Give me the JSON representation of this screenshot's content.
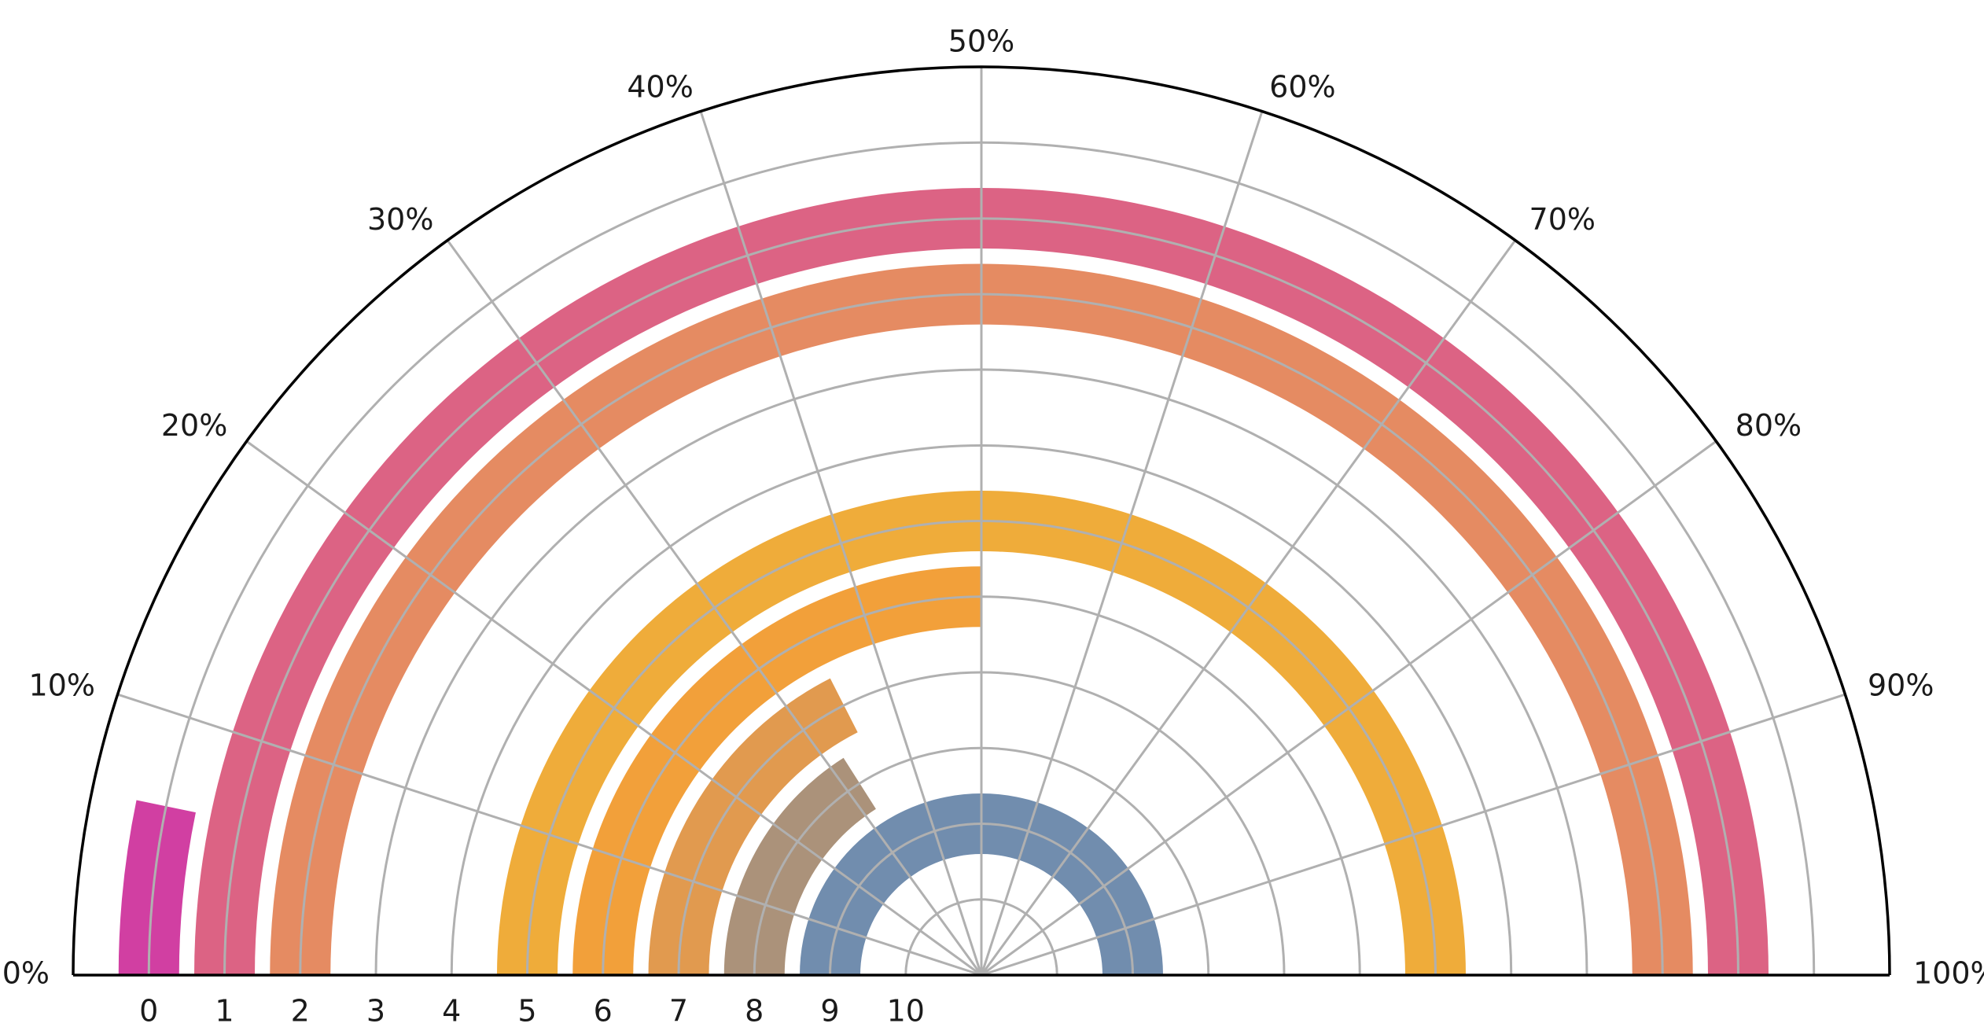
{
  "chart_data": {
    "type": "radial-bar",
    "angle_tick_labels": [
      "0%",
      "10%",
      "20%",
      "30%",
      "40%",
      "50%",
      "60%",
      "70%",
      "80%",
      "90%",
      "100%"
    ],
    "radial_tick_labels": [
      "0",
      "1",
      "2",
      "3",
      "4",
      "5",
      "6",
      "7",
      "8",
      "9",
      "10"
    ],
    "angle_range": [
      0,
      100
    ],
    "radial_range": [
      0,
      12
    ],
    "grid": true,
    "bars": [
      {
        "position": 0,
        "value": 6.5,
        "color": "#d13fa2"
      },
      {
        "position": 1,
        "value": 100,
        "color": "#dc6384"
      },
      {
        "position": 2,
        "value": 100,
        "color": "#e58b62"
      },
      {
        "position": 5,
        "value": 100,
        "color": "#efac3a"
      },
      {
        "position": 6,
        "value": 50,
        "color": "#f2a03a"
      },
      {
        "position": 7,
        "value": 35,
        "color": "#e19a4f"
      },
      {
        "position": 8,
        "value": 32,
        "color": "#ab927a"
      },
      {
        "position": 9,
        "value": 100,
        "color": "#718dae"
      }
    ],
    "colors": {
      "grid": "#b0b0b0",
      "frame": "#000000"
    }
  }
}
